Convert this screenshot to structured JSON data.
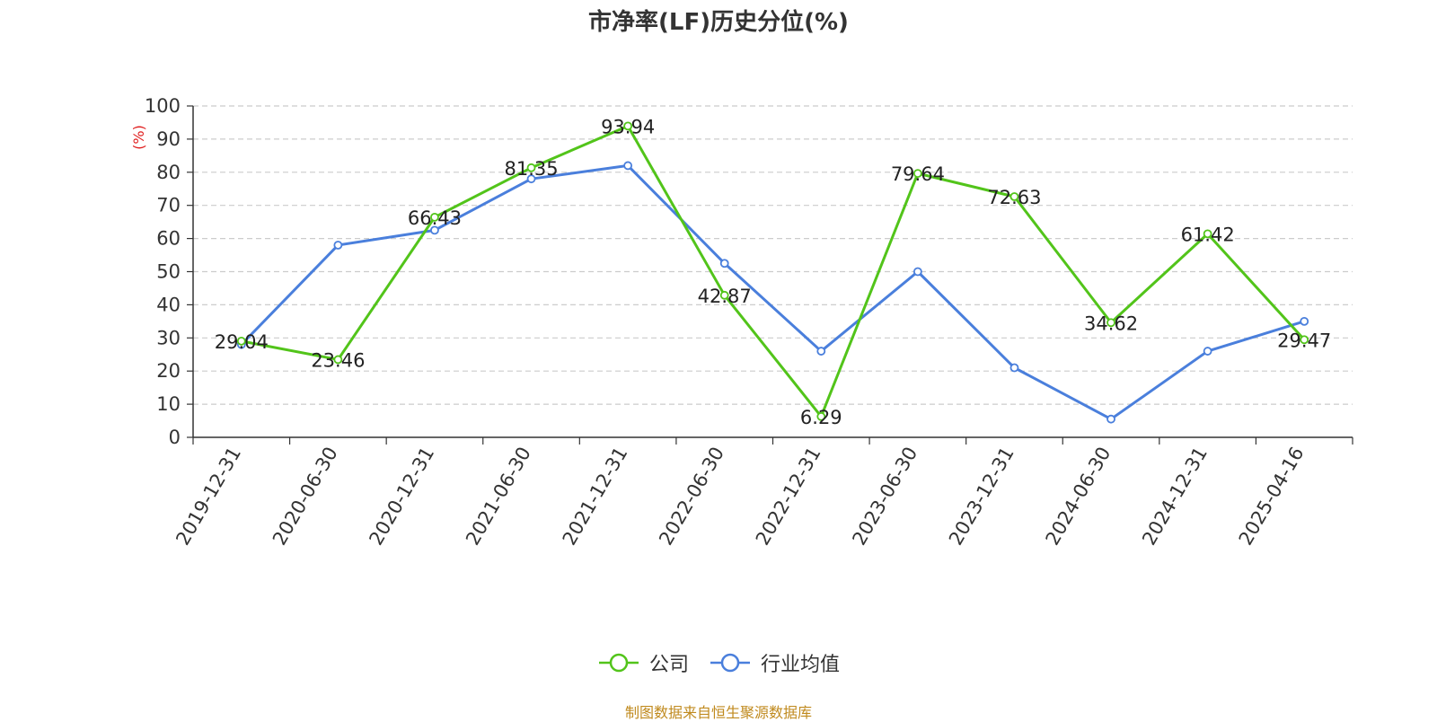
{
  "chart_data": {
    "type": "line",
    "title": "市净率(LF)历史分位(%)",
    "ylabel": "(%)",
    "xlabel": "",
    "ylim": [
      0,
      100
    ],
    "yticks": [
      0,
      10,
      20,
      30,
      40,
      50,
      60,
      70,
      80,
      90,
      100
    ],
    "grid": true,
    "legend_position": "bottom",
    "categories": [
      "2019-12-31",
      "2020-06-30",
      "2020-12-31",
      "2021-06-30",
      "2021-12-31",
      "2022-06-30",
      "2022-12-31",
      "2023-06-30",
      "2023-12-31",
      "2024-06-30",
      "2024-12-31",
      "2025-04-16"
    ],
    "series": [
      {
        "name": "公司",
        "color": "#52c41a",
        "values": [
          29.04,
          23.46,
          66.43,
          81.35,
          93.94,
          42.87,
          6.29,
          79.64,
          72.63,
          34.62,
          61.42,
          29.47
        ],
        "labels": [
          "29.04",
          "23.46",
          "66.43",
          "81.35",
          "93.94",
          "42.87",
          "6.29",
          "79.64",
          "72.63",
          "34.62",
          "61.42",
          "29.47"
        ]
      },
      {
        "name": "行业均值",
        "color": "#4a7fdc",
        "values": [
          28.0,
          58.0,
          62.5,
          78.0,
          82.0,
          52.5,
          26.0,
          50.0,
          21.0,
          5.5,
          26.0,
          35.0
        ]
      }
    ],
    "source": "制图数据来自恒生聚源数据库"
  }
}
